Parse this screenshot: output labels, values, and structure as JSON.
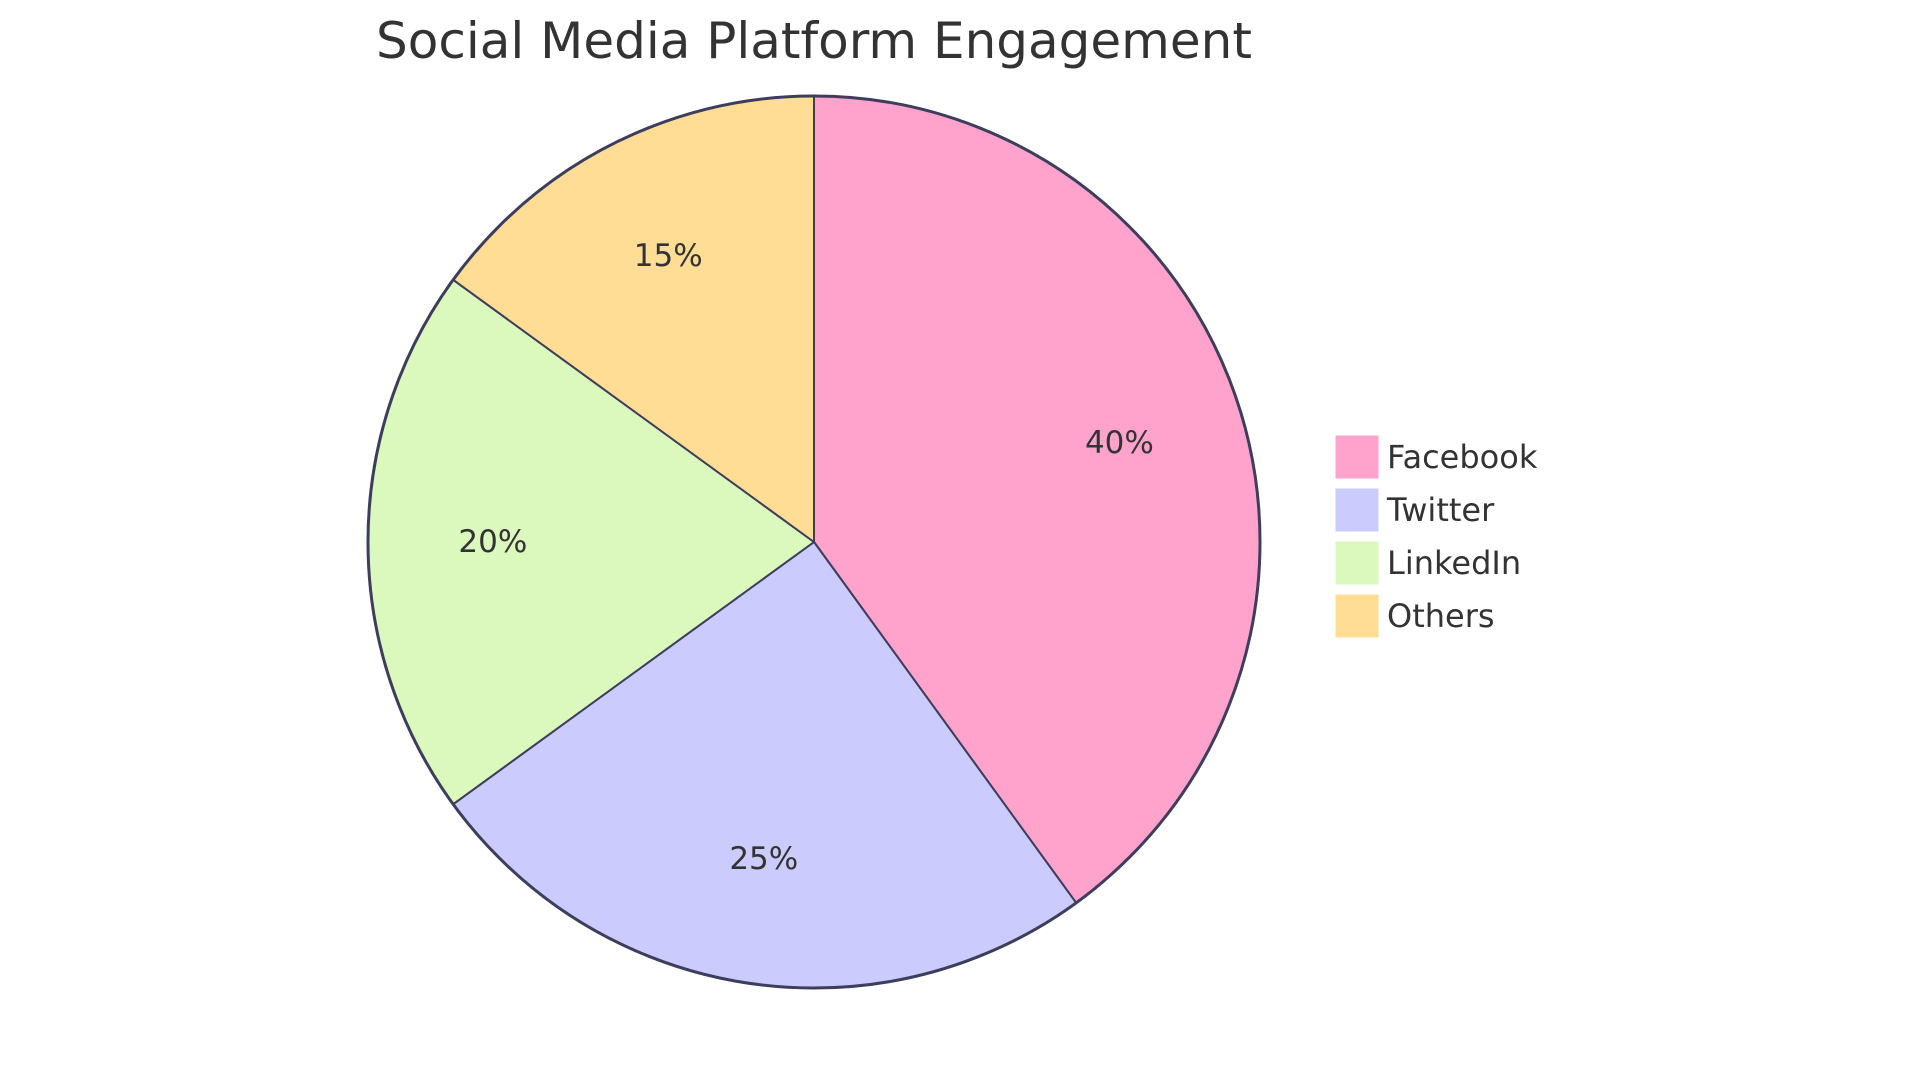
{
  "chart_data": {
    "type": "pie",
    "title": "Social Media Platform Engagement",
    "categories": [
      "Facebook",
      "Twitter",
      "LinkedIn",
      "Others"
    ],
    "values": [
      40,
      25,
      20,
      15
    ],
    "value_labels": [
      "40%",
      "25%",
      "20%",
      "15%"
    ],
    "colors": [
      "#ffa3cd",
      "#cbcbfd",
      "#dbf9bc",
      "#ffdd95"
    ],
    "stroke_color": "#3d3d5c",
    "legend": {
      "placement": "right",
      "items": [
        "Facebook",
        "Twitter",
        "LinkedIn",
        "Others"
      ]
    }
  }
}
